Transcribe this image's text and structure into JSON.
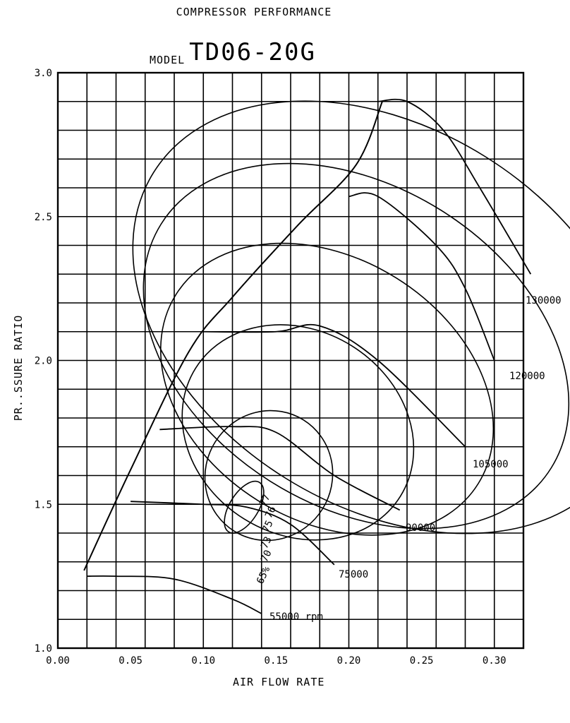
{
  "chart_data": {
    "type": "line",
    "title": "COMPRESSOR PERFORMANCE",
    "model_label": "MODEL",
    "model_value": "TD06-20G",
    "xlabel": "AIR FLOW RATE",
    "ylabel": "PR..SSURE RATIO",
    "xlim": [
      0.0,
      0.32
    ],
    "ylim": [
      1.0,
      3.0
    ],
    "x_ticks": [
      "0.00",
      "0.05",
      "0.10",
      "0.15",
      "0.20",
      "0.25",
      "0.30"
    ],
    "y_ticks": [
      "1.0",
      "1.5",
      "2.0",
      "2.5",
      "3.0"
    ],
    "grid": true,
    "speed_lines": [
      {
        "label": "55000 rpm",
        "points": [
          [
            0.02,
            1.25
          ],
          [
            0.04,
            1.25
          ],
          [
            0.08,
            1.24
          ],
          [
            0.12,
            1.17
          ],
          [
            0.14,
            1.12
          ]
        ]
      },
      {
        "label": "75000",
        "points": [
          [
            0.05,
            1.51
          ],
          [
            0.1,
            1.5
          ],
          [
            0.13,
            1.49
          ],
          [
            0.16,
            1.43
          ],
          [
            0.19,
            1.29
          ]
        ]
      },
      {
        "label": "90000",
        "points": [
          [
            0.07,
            1.76
          ],
          [
            0.12,
            1.77
          ],
          [
            0.15,
            1.75
          ],
          [
            0.19,
            1.6
          ],
          [
            0.235,
            1.48
          ]
        ]
      },
      {
        "label": "105000",
        "points": [
          [
            0.1,
            2.1
          ],
          [
            0.15,
            2.1
          ],
          [
            0.18,
            2.12
          ],
          [
            0.22,
            2.0
          ],
          [
            0.28,
            1.7
          ]
        ]
      },
      {
        "label": "120000",
        "points": [
          [
            0.2,
            2.57
          ],
          [
            0.22,
            2.57
          ],
          [
            0.26,
            2.4
          ],
          [
            0.28,
            2.25
          ],
          [
            0.3,
            2.0
          ]
        ]
      },
      {
        "label": "130000",
        "points": [
          [
            0.22,
            2.9
          ],
          [
            0.24,
            2.9
          ],
          [
            0.265,
            2.8
          ],
          [
            0.29,
            2.6
          ],
          [
            0.325,
            2.3
          ]
        ]
      }
    ],
    "efficiency_labels": [
      "77",
      "76",
      "75",
      "73",
      "70",
      "65%"
    ]
  }
}
